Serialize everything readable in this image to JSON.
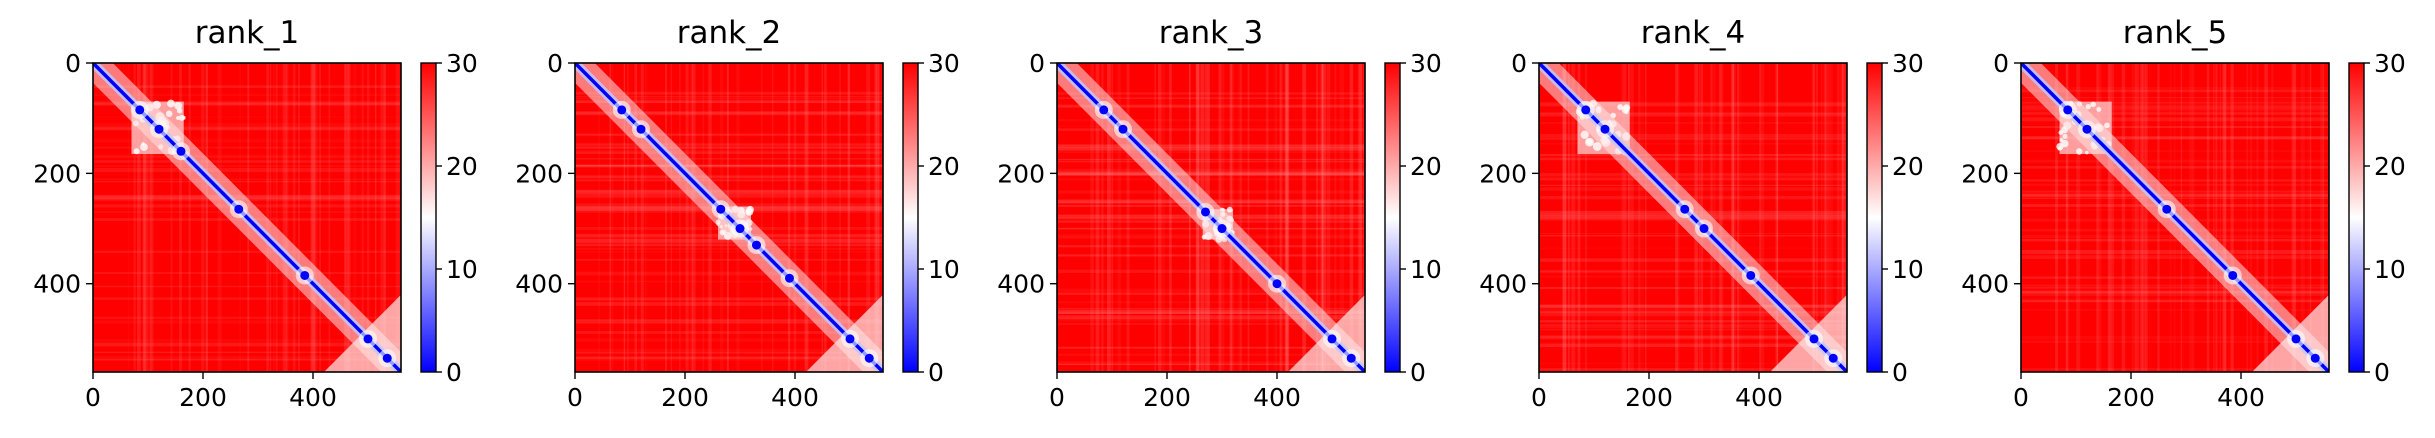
{
  "figure": {
    "cmap": [
      "#0000ff",
      "#ffffff",
      "#ff0000"
    ]
  },
  "chart_data": [
    {
      "type": "heatmap",
      "title": "rank_1",
      "xticks": [
        0,
        200,
        400
      ],
      "yticks": [
        0,
        200,
        400
      ],
      "xlim": [
        0,
        560
      ],
      "ylim": [
        560,
        0
      ],
      "colorbar": {
        "ticks": [
          0,
          10,
          20,
          30
        ],
        "range": [
          0,
          30
        ]
      },
      "features": {
        "diag_blobs": [
          85,
          120,
          160,
          265,
          385,
          500,
          535
        ],
        "side_square": [
          70,
          165
        ],
        "noise": 0.18
      }
    },
    {
      "type": "heatmap",
      "title": "rank_2",
      "xticks": [
        0,
        200,
        400
      ],
      "yticks": [
        0,
        200,
        400
      ],
      "xlim": [
        0,
        560
      ],
      "ylim": [
        560,
        0
      ],
      "colorbar": {
        "ticks": [
          0,
          10,
          20,
          30
        ],
        "range": [
          0,
          30
        ]
      },
      "features": {
        "diag_blobs": [
          85,
          120,
          265,
          300,
          330,
          390,
          500,
          535
        ],
        "side_square": [
          260,
          320
        ],
        "noise": 0.22
      }
    },
    {
      "type": "heatmap",
      "title": "rank_3",
      "xticks": [
        0,
        200,
        400
      ],
      "yticks": [
        0,
        200,
        400
      ],
      "xlim": [
        0,
        560
      ],
      "ylim": [
        560,
        0
      ],
      "colorbar": {
        "ticks": [
          0,
          10,
          20,
          30
        ],
        "range": [
          0,
          30
        ]
      },
      "features": {
        "diag_blobs": [
          85,
          120,
          270,
          300,
          400,
          500,
          535
        ],
        "side_square": [
          265,
          320
        ],
        "noise": 0.25
      }
    },
    {
      "type": "heatmap",
      "title": "rank_4",
      "xticks": [
        0,
        200,
        400
      ],
      "yticks": [
        0,
        200,
        400
      ],
      "xlim": [
        0,
        560
      ],
      "ylim": [
        560,
        0
      ],
      "colorbar": {
        "ticks": [
          0,
          10,
          20,
          30
        ],
        "range": [
          0,
          30
        ]
      },
      "features": {
        "diag_blobs": [
          85,
          120,
          265,
          300,
          385,
          500,
          535
        ],
        "side_square": [
          70,
          165
        ],
        "noise": 0.2
      }
    },
    {
      "type": "heatmap",
      "title": "rank_5",
      "xticks": [
        0,
        200,
        400
      ],
      "yticks": [
        0,
        200,
        400
      ],
      "xlim": [
        0,
        560
      ],
      "ylim": [
        560,
        0
      ],
      "colorbar": {
        "ticks": [
          0,
          10,
          20,
          30
        ],
        "range": [
          0,
          30
        ]
      },
      "features": {
        "diag_blobs": [
          85,
          120,
          265,
          385,
          500,
          535
        ],
        "side_square": [
          70,
          165
        ],
        "noise": 0.18
      }
    }
  ]
}
